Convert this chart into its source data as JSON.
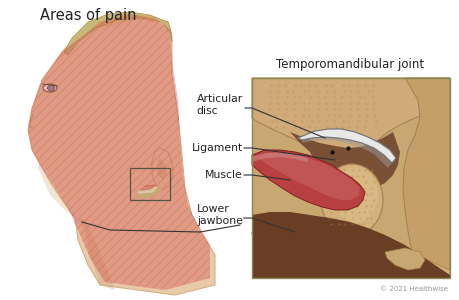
{
  "title_left": "Areas of pain",
  "title_right": "Temporomandibular joint",
  "copyright": "© 2021 Healthwise",
  "labels": {
    "articular_disc": "Articular\ndisc",
    "ligament": "Ligament",
    "muscle": "Muscle",
    "lower_jawbone": "Lower\njawbone"
  },
  "bg_color": "#ffffff",
  "pain_color": "#cc3333",
  "pain_alpha": 0.3,
  "skin_face": "#e8c9a8",
  "skin_shadow": "#d4a87a",
  "skin_neck": "#dbb990",
  "hair_color": "#c8b878",
  "hair_shadow": "#b09050",
  "bone_top": "#d4b888",
  "bone_condyle": "#d8bc88",
  "bone_right": "#c4a070",
  "dark_tissue": "#7a5035",
  "dark_tissue2": "#6a3e25",
  "muscle_base": "#b84040",
  "muscle_light": "#cc7070",
  "muscle_pink": "#d09090",
  "disc_white": "#e8e8e8",
  "disc_gray": "#999999",
  "disc_outline": "#777777",
  "box_bg": "#c8a870",
  "box_border": "#888855",
  "label_color": "#222222",
  "line_color": "#333333",
  "rect_color": "#555544"
}
